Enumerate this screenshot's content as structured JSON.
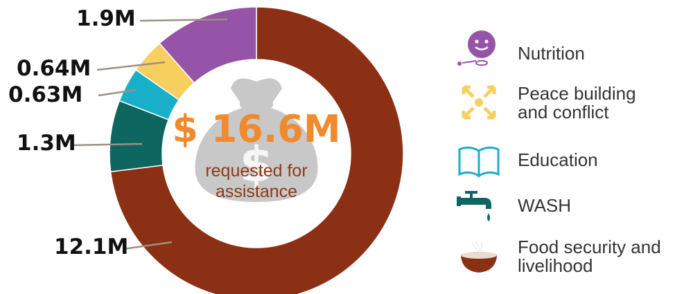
{
  "chart_data": {
    "type": "pie",
    "total": "$ 16.6M",
    "subtitle": "requested for assistance",
    "slices": [
      {
        "label": "Food security and livelihood",
        "value": 12.1,
        "display": "12.1M",
        "color": "#8B3014",
        "icon": "food-bowl-icon"
      },
      {
        "label": "WASH",
        "value": 1.3,
        "display": "1.3M",
        "color": "#0E6660",
        "icon": "water-tap-icon"
      },
      {
        "label": "Education",
        "value": 0.63,
        "display": "0.63M",
        "color": "#19AFC9",
        "icon": "book-icon"
      },
      {
        "label": "Peace building and conflict",
        "value": 0.64,
        "display": "0.64M",
        "color": "#F7CF5E",
        "icon": "peace-arrows-icon"
      },
      {
        "label": "Nutrition",
        "value": 1.9,
        "display": "1.9M",
        "color": "#9654A8",
        "icon": "baby-face-icon"
      }
    ]
  },
  "legend": [
    {
      "label_line1": "Nutrition",
      "label_line2": "",
      "icon": "baby-face-icon"
    },
    {
      "label_line1": "Peace building",
      "label_line2": "and conflict",
      "icon": "peace-arrows-icon"
    },
    {
      "label_line1": "Education",
      "label_line2": "",
      "icon": "book-icon"
    },
    {
      "label_line1": "WASH",
      "label_line2": "",
      "icon": "water-tap-icon"
    },
    {
      "label_line1": "Food security and",
      "label_line2": "livelihood",
      "icon": "food-bowl-icon"
    }
  ],
  "colors": {
    "total_text": "#F08A2E",
    "subtitle_text": "#8B3A1A",
    "money_bag": "#C8C8C8",
    "leader_line": "#9E9080"
  }
}
